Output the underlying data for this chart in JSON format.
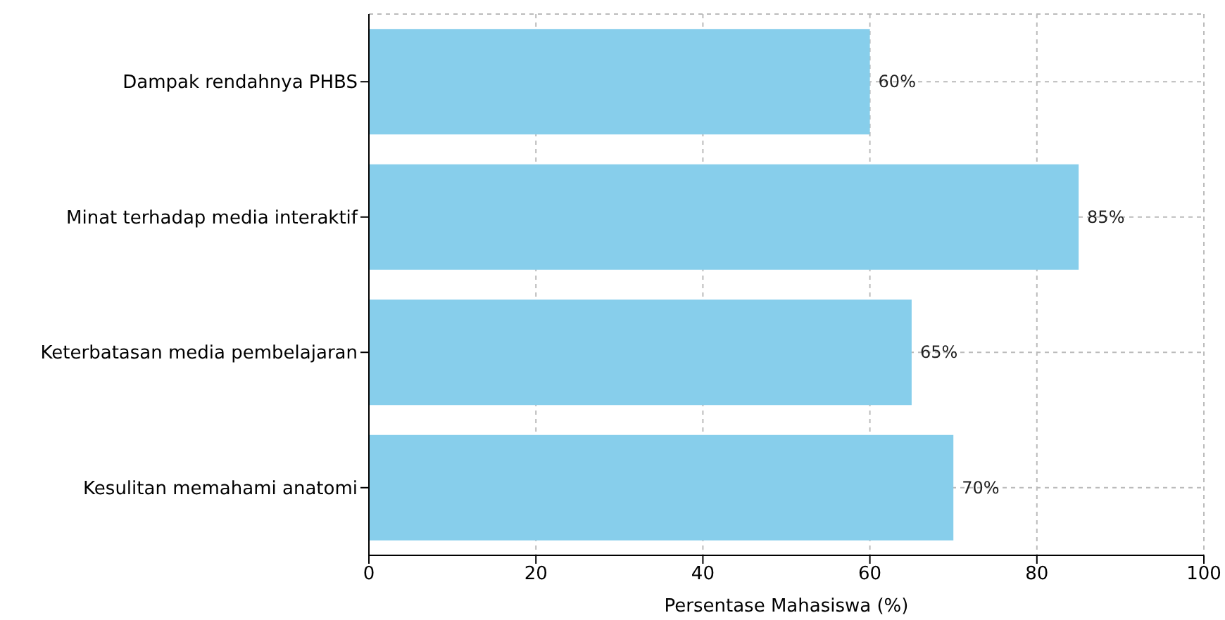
{
  "chart_data": {
    "type": "bar",
    "orientation": "horizontal",
    "xlabel": "Persentase Mahasiswa (%)",
    "categories": [
      "Dampak rendahnya PHBS",
      "Minat terhadap media interaktif",
      "Keterbatasan media pembelajaran",
      "Kesulitan memahami anatomi"
    ],
    "values": [
      60,
      85,
      65,
      70
    ],
    "value_labels": [
      "60%",
      "85%",
      "65%",
      "70%"
    ],
    "color": "#87ceeb",
    "xlim": [
      0,
      100
    ],
    "xticks": [
      0,
      20,
      40,
      60,
      80,
      100
    ],
    "grid": true
  }
}
